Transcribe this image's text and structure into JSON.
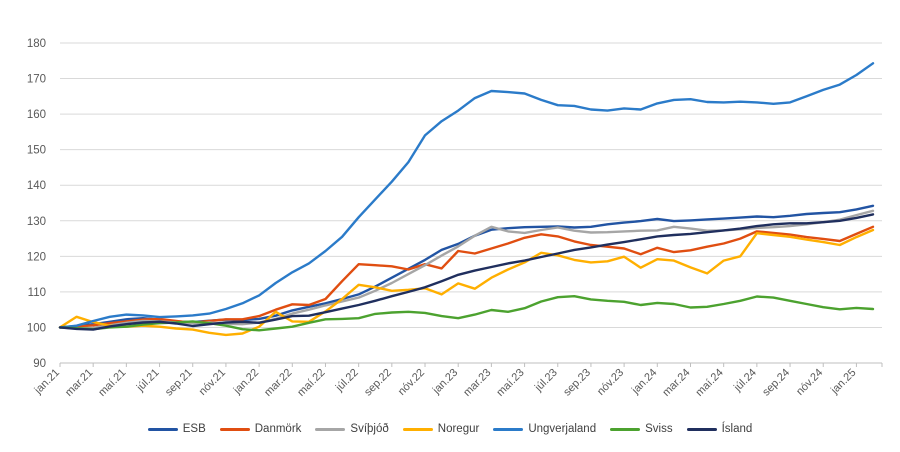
{
  "chart_data": {
    "type": "line",
    "title": "",
    "xlabel": "",
    "ylabel": "",
    "ylim": [
      90,
      180
    ],
    "y_ticks": [
      90,
      100,
      110,
      120,
      130,
      140,
      150,
      160,
      170,
      180
    ],
    "grid": "horizontal",
    "legend_position": "bottom",
    "x_tick_labels": [
      "jan.21",
      "mar.21",
      "maí.21",
      "júl.21",
      "sep.21",
      "nóv.21",
      "jan.22",
      "mar.22",
      "maí.22",
      "júl.22",
      "sep.22",
      "nóv.22",
      "jan.23",
      "mar.23",
      "maí.23",
      "júl.23",
      "sep.23",
      "nóv.23",
      "jan.24",
      "mar.24",
      "maí.24",
      "júl.24",
      "sep.24",
      "nóv.24",
      "jan.25"
    ],
    "x_is_monthly": true,
    "points_per_series": 50,
    "series": [
      {
        "name": "ESB",
        "color": "#2254A3",
        "values": [
          100,
          100.4,
          100.9,
          101.6,
          102.3,
          102.6,
          102.2,
          101.7,
          101.5,
          101.9,
          102.2,
          102.1,
          102.4,
          103.3,
          104.8,
          105.8,
          106.8,
          108,
          109.3,
          111.5,
          114,
          116.5,
          119,
          121.8,
          123.5,
          125.8,
          127.5,
          127.9,
          128.2,
          128.3,
          128.4,
          128.1,
          128.3,
          129,
          129.5,
          129.9,
          130.5,
          129.9,
          130.1,
          130.4,
          130.6,
          130.9,
          131.2,
          131,
          131.4,
          131.9,
          132.2,
          132.4,
          133.2,
          134.2
        ]
      },
      {
        "name": "Danmörk",
        "color": "#E04E11",
        "values": [
          100,
          100.2,
          100.6,
          101.2,
          101.7,
          102.2,
          102.4,
          101.8,
          101.3,
          101.8,
          102.3,
          102.3,
          103.2,
          105,
          106.5,
          106.3,
          108,
          113,
          117.8,
          117.5,
          117.2,
          116.3,
          117.8,
          116.6,
          121.5,
          120.8,
          122.2,
          123.6,
          125.2,
          126.2,
          125.6,
          124.2,
          123.2,
          122.7,
          122.2,
          120.6,
          122.4,
          121.2,
          121.7,
          122.7,
          123.6,
          125,
          127,
          126.6,
          126.1,
          125.4,
          124.9,
          124.3,
          126.3,
          128.3
        ]
      },
      {
        "name": "Svíþjóð",
        "color": "#A6A6A6",
        "values": [
          100,
          99.7,
          99.9,
          100.6,
          101.3,
          101.8,
          101.7,
          101.4,
          101.2,
          101.4,
          101,
          100.9,
          101.4,
          102.4,
          103.9,
          105,
          106.2,
          107.3,
          108.4,
          110.3,
          112.5,
          115,
          117.5,
          120.2,
          122.8,
          125.8,
          128.3,
          127,
          126.6,
          127.4,
          128.1,
          127.2,
          126.7,
          126.8,
          127,
          127.2,
          127.3,
          128.3,
          127.8,
          127.2,
          127.3,
          127.6,
          128,
          128.2,
          128.5,
          129,
          129.6,
          130.3,
          131.6,
          132.8
        ]
      },
      {
        "name": "Noregur",
        "color": "#FFAF00",
        "values": [
          100,
          103,
          101.5,
          100.5,
          100.2,
          100.5,
          100.2,
          99.7,
          99.4,
          98.5,
          97.9,
          98.3,
          100.2,
          104.4,
          101.7,
          101.6,
          104.5,
          108,
          112,
          111.3,
          110.3,
          110.6,
          111,
          109.3,
          112.4,
          110.9,
          114,
          116.3,
          118.3,
          121,
          120.3,
          119,
          118.3,
          118.6,
          119.9,
          116.8,
          119.2,
          118.8,
          116.9,
          115.2,
          118.8,
          120,
          126.5,
          126,
          125.5,
          124.7,
          124,
          123.2,
          125.4,
          127.4
        ]
      },
      {
        "name": "Ungverjaland",
        "color": "#2B7BC9",
        "values": [
          100,
          100.5,
          101.8,
          103,
          103.6,
          103.4,
          102.9,
          103.1,
          103.4,
          103.9,
          105.2,
          106.8,
          109,
          112.5,
          115.5,
          118,
          121.5,
          125.5,
          131,
          136,
          141,
          146.5,
          154,
          158,
          161,
          164.5,
          166.5,
          166.2,
          165.8,
          164,
          162.5,
          162.3,
          161.3,
          161,
          161.6,
          161.3,
          163,
          164,
          164.2,
          163.4,
          163.3,
          163.5,
          163.3,
          162.9,
          163.3,
          165,
          166.8,
          168.3,
          171,
          174.3
        ]
      },
      {
        "name": "Sviss",
        "color": "#4CA22F",
        "values": [
          100,
          99.8,
          99.5,
          100,
          100.2,
          100.8,
          101.2,
          101.4,
          101.7,
          101.2,
          100.5,
          99.5,
          99.2,
          99.7,
          100.2,
          101.3,
          102.3,
          102.4,
          102.6,
          103.8,
          104.2,
          104.4,
          104.1,
          103.2,
          102.6,
          103.6,
          104.9,
          104.4,
          105.4,
          107.3,
          108.5,
          108.8,
          107.9,
          107.5,
          107.2,
          106.3,
          106.9,
          106.6,
          105.6,
          105.8,
          106.6,
          107.5,
          108.7,
          108.4,
          107.5,
          106.6,
          105.7,
          105.1,
          105.5,
          105.2
        ]
      },
      {
        "name": "Ísland",
        "color": "#202F5E",
        "values": [
          100,
          99.6,
          99.4,
          100.3,
          100.9,
          101.4,
          101.6,
          101.1,
          100.4,
          100.9,
          101.4,
          101.6,
          101.3,
          102.2,
          103.2,
          103.3,
          104.3,
          105.3,
          106.3,
          107.5,
          108.8,
          110,
          111.3,
          113,
          114.8,
          116,
          117,
          118,
          118.8,
          119.8,
          120.8,
          121.8,
          122.5,
          123.3,
          124,
          124.8,
          125.6,
          126,
          126.3,
          126.8,
          127.3,
          127.8,
          128.5,
          129,
          129.3,
          129.3,
          129.6,
          130,
          130.8,
          131.8
        ]
      }
    ],
    "axis_color": "#BFBFBF",
    "gridline_color": "#D9D9D9",
    "tick_label_color": "#595959"
  }
}
